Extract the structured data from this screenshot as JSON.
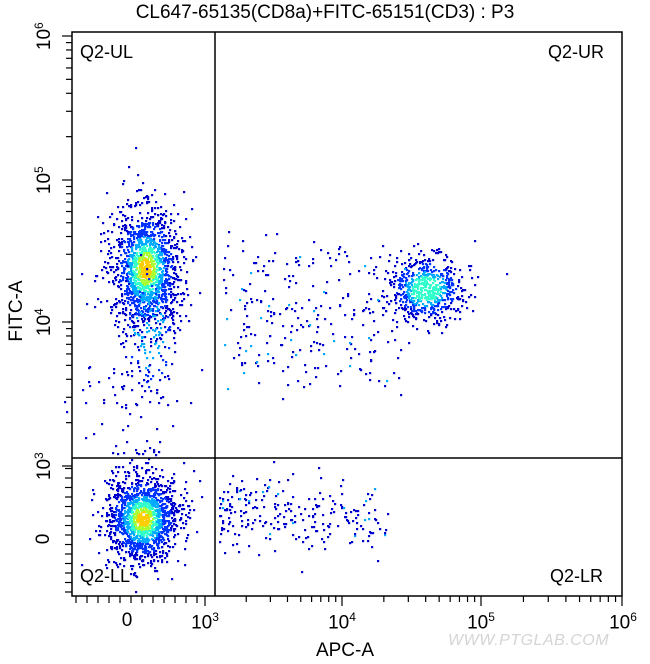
{
  "chart_data": {
    "type": "scatter",
    "subtype": "flow-cytometry-density-dot-plot",
    "title": "CL647-65135(CD8a)+FITC-65151(CD3) : P3",
    "xlabel": "APC-A",
    "ylabel": "FITC-A",
    "x_scale": "biexponential",
    "y_scale": "biexponential",
    "x_tick_labels": [
      "0",
      "10^3",
      "10^4",
      "10^5",
      "10^6"
    ],
    "y_tick_labels": [
      "0",
      "10^3",
      "10^4",
      "10^5",
      "10^6"
    ],
    "gate": {
      "name": "Q2",
      "x_threshold_approx": 1200,
      "y_threshold_approx": 1100
    },
    "quadrants": [
      {
        "label": "Q2-UL",
        "position": "upper-left"
      },
      {
        "label": "Q2-UR",
        "position": "upper-right"
      },
      {
        "label": "Q2-LL",
        "position": "lower-left"
      },
      {
        "label": "Q2-LR",
        "position": "lower-right"
      }
    ],
    "populations": [
      {
        "name": "CD3+CD8a- (UL)",
        "x_center_approx": 250,
        "y_center_approx": 22000,
        "density": "high"
      },
      {
        "name": "CD3+CD8a+ (UR)",
        "x_center_approx": 40000,
        "y_center_approx": 18000,
        "density": "medium"
      },
      {
        "name": "CD3-CD8a- (LL)",
        "x_center_approx": 250,
        "y_center_approx": 50,
        "density": "high"
      },
      {
        "name": "scattered LR events",
        "x_range_approx": [
          1200,
          20000
        ],
        "y_center_approx": 50,
        "density": "low"
      }
    ],
    "color_scale": [
      "#0000cc",
      "#0033ff",
      "#00aaff",
      "#33ffcc",
      "#aaff33",
      "#ffcc00"
    ],
    "grid": false,
    "legend": null
  },
  "labels": {
    "title": "CL647-65135(CD8a)+FITC-65151(CD3) : P3",
    "xlabel": "APC-A",
    "ylabel": "FITC-A",
    "q_ul": "Q2-UL",
    "q_ur": "Q2-UR",
    "q_ll": "Q2-LL",
    "q_lr": "Q2-LR",
    "watermark": "WWW.PTGLAB.COM"
  },
  "xticks": [
    {
      "base": "0",
      "exp": "",
      "px": 127
    },
    {
      "base": "10",
      "exp": "3",
      "px": 205
    },
    {
      "base": "10",
      "exp": "4",
      "px": 342
    },
    {
      "base": "10",
      "exp": "5",
      "px": 481
    },
    {
      "base": "10",
      "exp": "6",
      "px": 623
    }
  ],
  "yticks": [
    {
      "base": "0",
      "exp": "",
      "px": 540
    },
    {
      "base": "10",
      "exp": "3",
      "px": 466
    },
    {
      "base": "10",
      "exp": "4",
      "px": 322
    },
    {
      "base": "10",
      "exp": "5",
      "px": 180
    },
    {
      "base": "10",
      "exp": "6",
      "px": 36
    }
  ]
}
